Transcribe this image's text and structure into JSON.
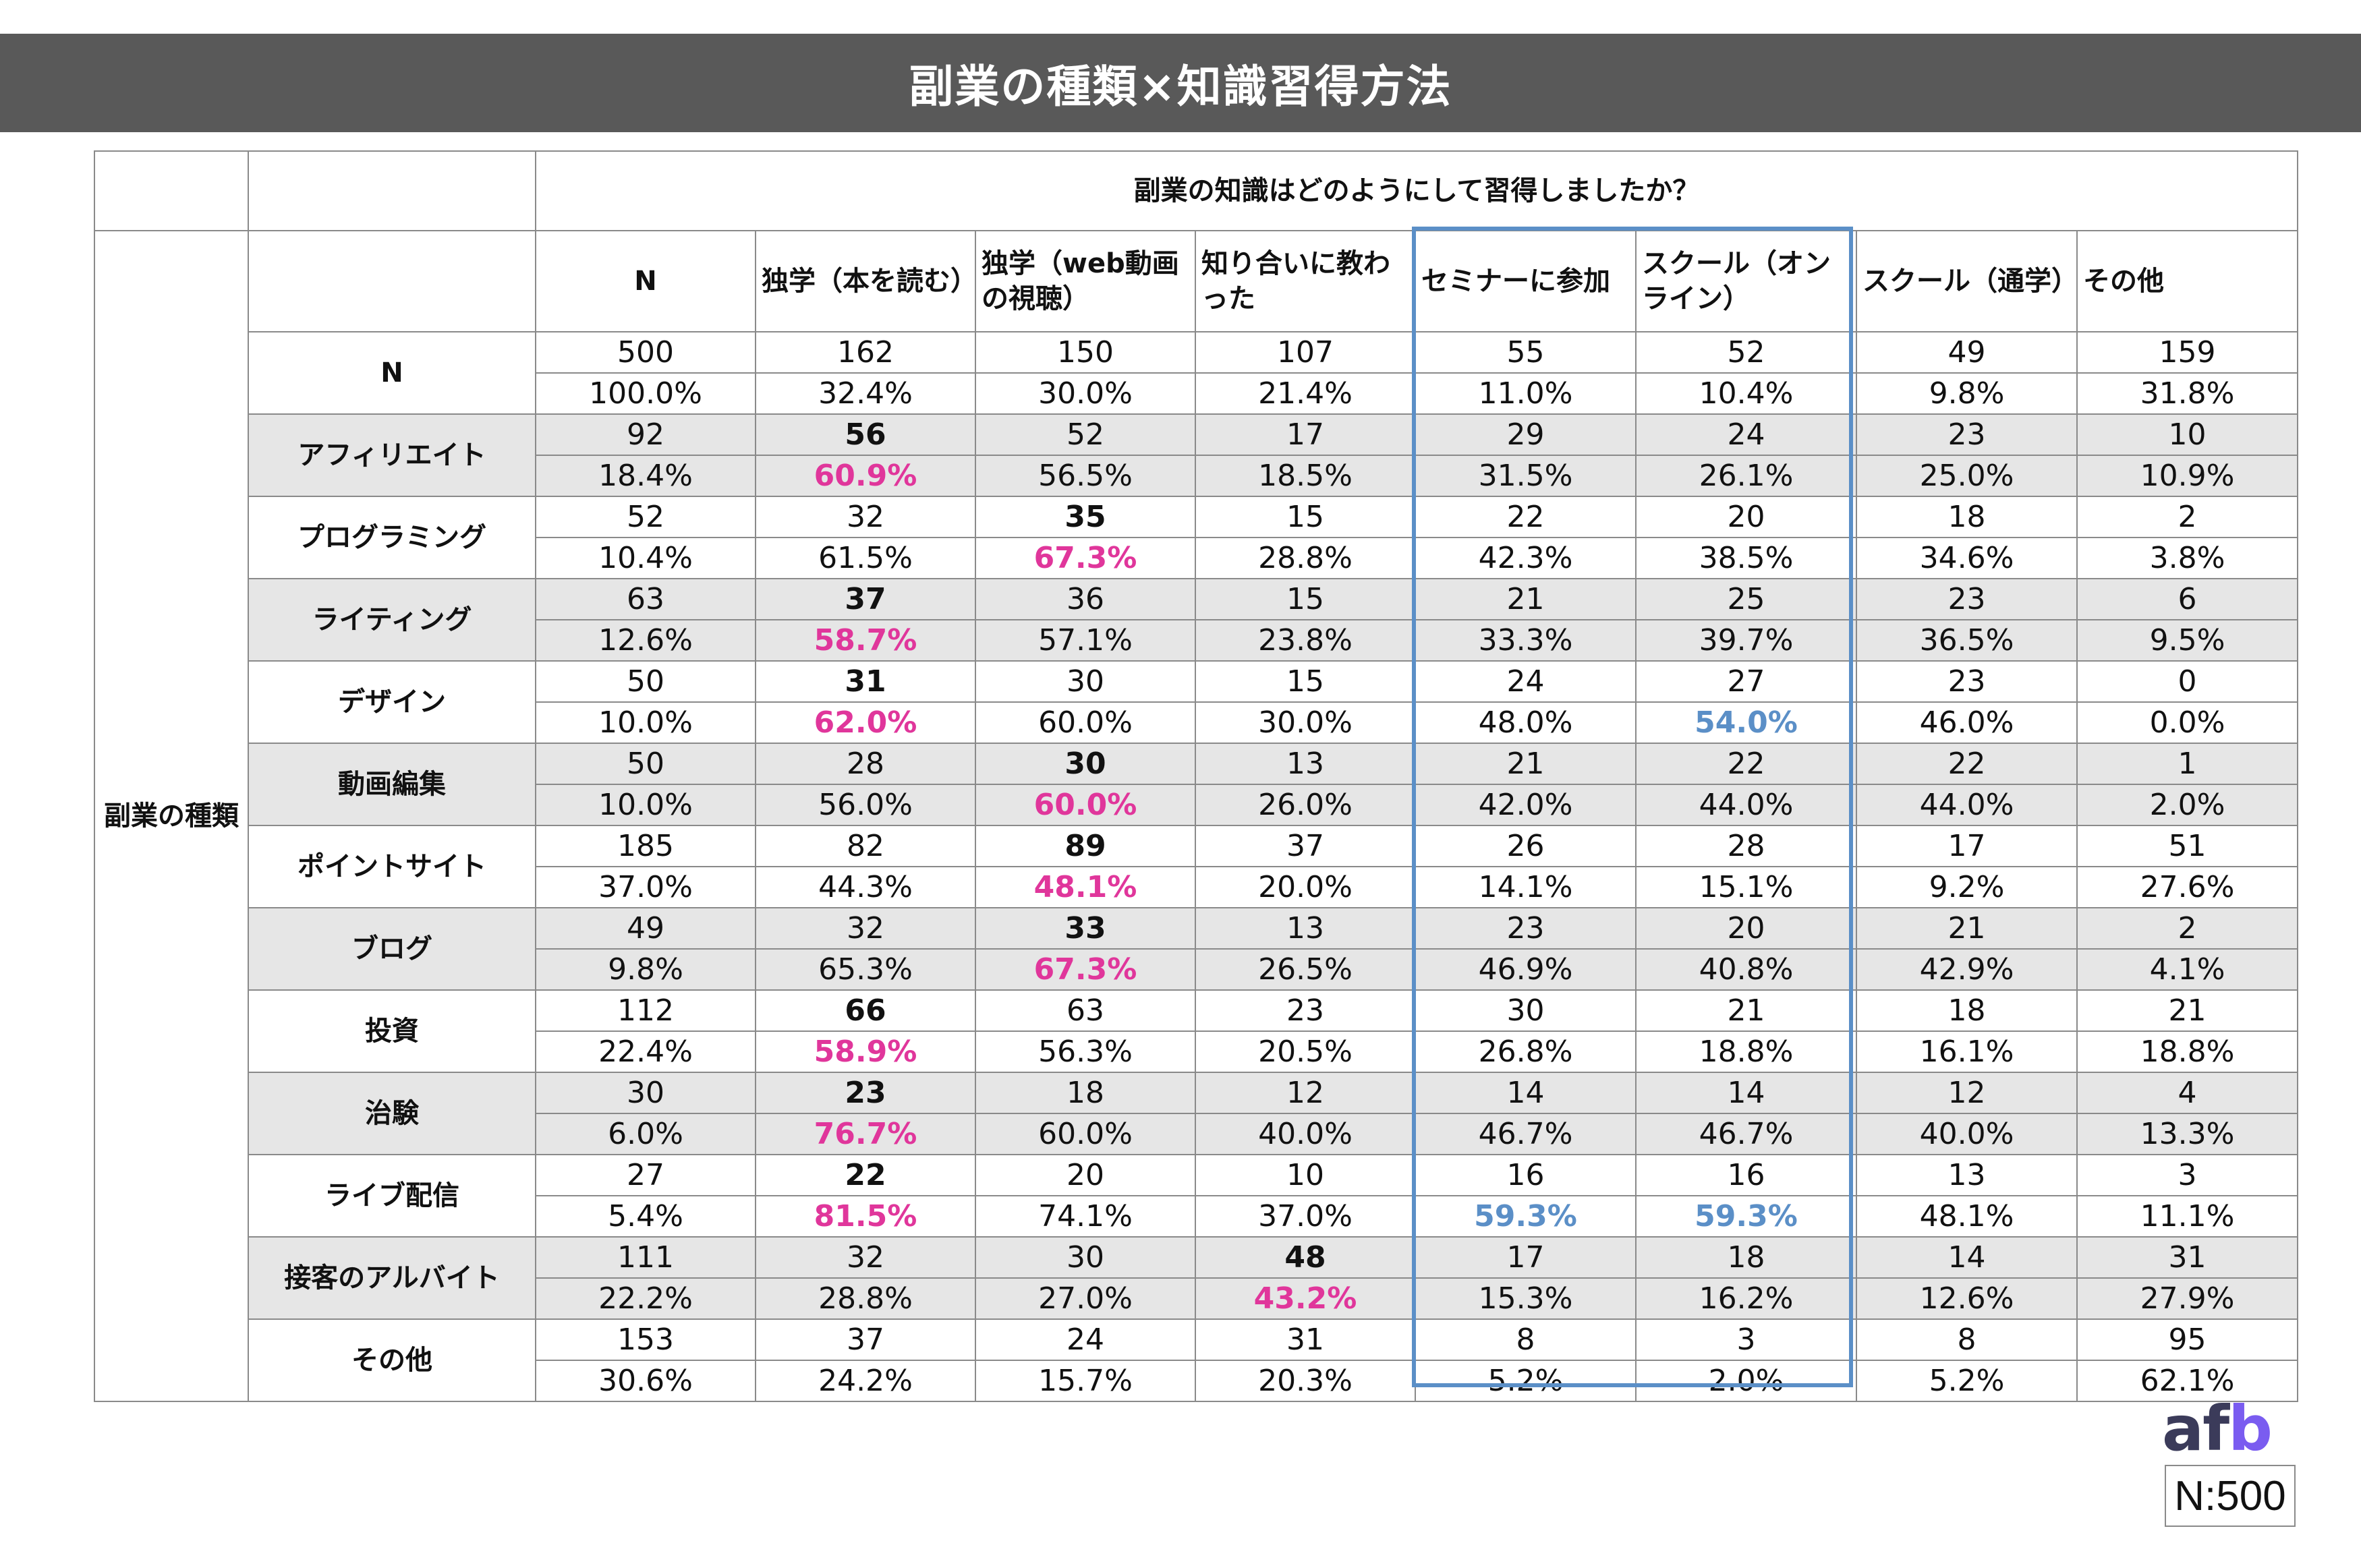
{
  "title": "副業の種類×知識習得方法",
  "question": "副業の知識はどのようにして習得しましたか？",
  "group_label": "副業の種類",
  "highlight_colors": {
    "pink": "#e0369b",
    "blue": "#5b8fc7"
  },
  "logo": "afb",
  "sample_note": "N:500",
  "chart_data": {
    "type": "table",
    "columns": [
      "N",
      "独学（本を読む）",
      "独学（web動画の視聴）",
      "知り合いに教わった",
      "セミナーに参加",
      "スクール（オンライン）",
      "スクール（通学）",
      "その他"
    ],
    "boxed_columns": [
      "セミナーに参加",
      "スクール（オンライン）"
    ],
    "rows": [
      {
        "label": "N",
        "shaded": false,
        "counts": [
          "500",
          "162",
          "150",
          "107",
          "55",
          "52",
          "49",
          "159"
        ],
        "percents": [
          "100.0%",
          "32.4%",
          "30.0%",
          "21.4%",
          "11.0%",
          "10.4%",
          "9.8%",
          "31.8%"
        ],
        "highlights": []
      },
      {
        "label": "アフィリエイト",
        "shaded": true,
        "counts": [
          "92",
          "56",
          "52",
          "17",
          "29",
          "24",
          "23",
          "10"
        ],
        "percents": [
          "18.4%",
          "60.9%",
          "56.5%",
          "18.5%",
          "31.5%",
          "26.1%",
          "25.0%",
          "10.9%"
        ],
        "highlights": [
          {
            "col": 1,
            "color": "pink"
          }
        ]
      },
      {
        "label": "プログラミング",
        "shaded": false,
        "counts": [
          "52",
          "32",
          "35",
          "15",
          "22",
          "20",
          "18",
          "2"
        ],
        "percents": [
          "10.4%",
          "61.5%",
          "67.3%",
          "28.8%",
          "42.3%",
          "38.5%",
          "34.6%",
          "3.8%"
        ],
        "highlights": [
          {
            "col": 2,
            "color": "pink"
          }
        ]
      },
      {
        "label": "ライティング",
        "shaded": true,
        "counts": [
          "63",
          "37",
          "36",
          "15",
          "21",
          "25",
          "23",
          "6"
        ],
        "percents": [
          "12.6%",
          "58.7%",
          "57.1%",
          "23.8%",
          "33.3%",
          "39.7%",
          "36.5%",
          "9.5%"
        ],
        "highlights": [
          {
            "col": 1,
            "color": "pink"
          }
        ]
      },
      {
        "label": "デザイン",
        "shaded": false,
        "counts": [
          "50",
          "31",
          "30",
          "15",
          "24",
          "27",
          "23",
          "0"
        ],
        "percents": [
          "10.0%",
          "62.0%",
          "60.0%",
          "30.0%",
          "48.0%",
          "54.0%",
          "46.0%",
          "0.0%"
        ],
        "highlights": [
          {
            "col": 1,
            "color": "pink"
          },
          {
            "col": 5,
            "color": "blue"
          }
        ]
      },
      {
        "label": "動画編集",
        "shaded": true,
        "counts": [
          "50",
          "28",
          "30",
          "13",
          "21",
          "22",
          "22",
          "1"
        ],
        "percents": [
          "10.0%",
          "56.0%",
          "60.0%",
          "26.0%",
          "42.0%",
          "44.0%",
          "44.0%",
          "2.0%"
        ],
        "highlights": [
          {
            "col": 2,
            "color": "pink"
          }
        ]
      },
      {
        "label": "ポイントサイト",
        "shaded": false,
        "counts": [
          "185",
          "82",
          "89",
          "37",
          "26",
          "28",
          "17",
          "51"
        ],
        "percents": [
          "37.0%",
          "44.3%",
          "48.1%",
          "20.0%",
          "14.1%",
          "15.1%",
          "9.2%",
          "27.6%"
        ],
        "highlights": [
          {
            "col": 2,
            "color": "pink"
          }
        ]
      },
      {
        "label": "ブログ",
        "shaded": true,
        "counts": [
          "49",
          "32",
          "33",
          "13",
          "23",
          "20",
          "21",
          "2"
        ],
        "percents": [
          "9.8%",
          "65.3%",
          "67.3%",
          "26.5%",
          "46.9%",
          "40.8%",
          "42.9%",
          "4.1%"
        ],
        "highlights": [
          {
            "col": 2,
            "color": "pink"
          }
        ]
      },
      {
        "label": "投資",
        "shaded": false,
        "counts": [
          "112",
          "66",
          "63",
          "23",
          "30",
          "21",
          "18",
          "21"
        ],
        "percents": [
          "22.4%",
          "58.9%",
          "56.3%",
          "20.5%",
          "26.8%",
          "18.8%",
          "16.1%",
          "18.8%"
        ],
        "highlights": [
          {
            "col": 1,
            "color": "pink"
          }
        ]
      },
      {
        "label": "治験",
        "shaded": true,
        "counts": [
          "30",
          "23",
          "18",
          "12",
          "14",
          "14",
          "12",
          "4"
        ],
        "percents": [
          "6.0%",
          "76.7%",
          "60.0%",
          "40.0%",
          "46.7%",
          "46.7%",
          "40.0%",
          "13.3%"
        ],
        "highlights": [
          {
            "col": 1,
            "color": "pink"
          }
        ]
      },
      {
        "label": "ライブ配信",
        "shaded": false,
        "counts": [
          "27",
          "22",
          "20",
          "10",
          "16",
          "16",
          "13",
          "3"
        ],
        "percents": [
          "5.4%",
          "81.5%",
          "74.1%",
          "37.0%",
          "59.3%",
          "59.3%",
          "48.1%",
          "11.1%"
        ],
        "highlights": [
          {
            "col": 1,
            "color": "pink"
          },
          {
            "col": 4,
            "color": "blue"
          },
          {
            "col": 5,
            "color": "blue"
          }
        ]
      },
      {
        "label": "接客のアルバイト",
        "shaded": true,
        "counts": [
          "111",
          "32",
          "30",
          "48",
          "17",
          "18",
          "14",
          "31"
        ],
        "percents": [
          "22.2%",
          "28.8%",
          "27.0%",
          "43.2%",
          "15.3%",
          "16.2%",
          "12.6%",
          "27.9%"
        ],
        "highlights": [
          {
            "col": 3,
            "color": "pink"
          }
        ]
      },
      {
        "label": "その他",
        "shaded": false,
        "counts": [
          "153",
          "37",
          "24",
          "31",
          "8",
          "3",
          "8",
          "95"
        ],
        "percents": [
          "30.6%",
          "24.2%",
          "15.7%",
          "20.3%",
          "5.2%",
          "2.0%",
          "5.2%",
          "62.1%"
        ],
        "highlights": []
      }
    ]
  }
}
